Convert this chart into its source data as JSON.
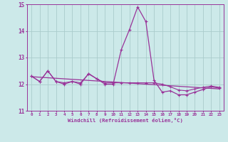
{
  "xlabel": "Windchill (Refroidissement éolien,°C)",
  "background_color": "#cce9e9",
  "grid_color": "#aacccc",
  "line_color": "#993399",
  "hours": [
    0,
    1,
    2,
    3,
    4,
    5,
    6,
    7,
    8,
    9,
    10,
    11,
    12,
    13,
    14,
    15,
    16,
    17,
    18,
    19,
    20,
    21,
    22,
    23
  ],
  "windchill": [
    12.3,
    12.1,
    12.5,
    12.1,
    12.0,
    12.1,
    12.0,
    12.4,
    12.2,
    12.0,
    12.0,
    13.3,
    14.05,
    14.9,
    14.35,
    12.15,
    11.7,
    11.75,
    11.6,
    11.6,
    11.7,
    11.8,
    11.9,
    11.85
  ],
  "temperature": [
    12.3,
    12.1,
    12.5,
    12.1,
    12.05,
    12.1,
    12.05,
    12.38,
    12.2,
    12.05,
    12.05,
    12.05,
    12.05,
    12.05,
    12.05,
    12.05,
    12.0,
    11.9,
    11.78,
    11.75,
    11.82,
    11.88,
    11.93,
    11.88
  ],
  "linear_start_x": 0,
  "linear_end_x": 23,
  "linear_start_y": 12.28,
  "linear_end_y": 11.82,
  "ylim": [
    11.0,
    15.0
  ],
  "xlim_min": -0.5,
  "xlim_max": 23.5,
  "yticks": [
    11,
    12,
    13,
    14,
    15
  ],
  "xticks": [
    0,
    1,
    2,
    3,
    4,
    5,
    6,
    7,
    8,
    9,
    10,
    11,
    12,
    13,
    14,
    15,
    16,
    17,
    18,
    19,
    20,
    21,
    22,
    23
  ]
}
